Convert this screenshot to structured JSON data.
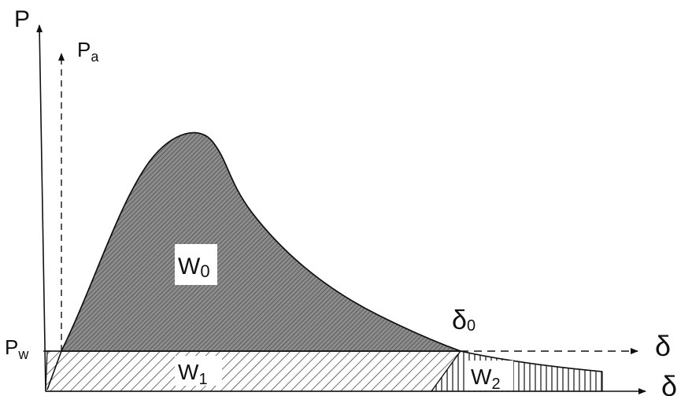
{
  "labels": {
    "p_axis": "P",
    "pa_axis": {
      "base": "P",
      "sub": "a"
    },
    "pw_level": {
      "base": "P",
      "sub": "w"
    },
    "delta_axis_upper": "δ",
    "delta_axis_lower": "δ",
    "delta0": {
      "base": "δ",
      "sub": "0"
    },
    "w0": {
      "base": "W",
      "sub": "0"
    },
    "w1": {
      "base": "W",
      "sub": "1"
    },
    "w2": {
      "base": "W",
      "sub": "2"
    }
  },
  "colors": {
    "line": "#111111",
    "w0_fill": "#8c8c8c",
    "background": "#ffffff"
  }
}
